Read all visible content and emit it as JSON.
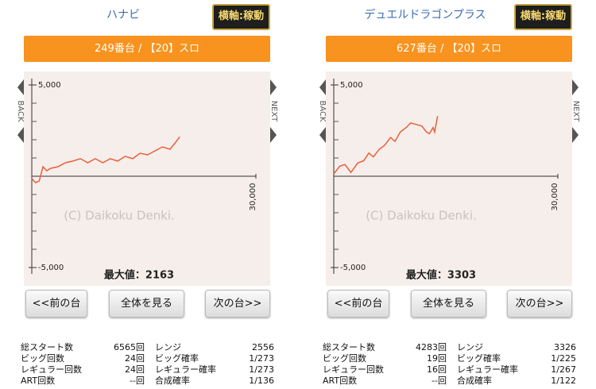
{
  "panels": [
    {
      "title": "ハナビ",
      "axis_button": "横軸:稼動",
      "machine": "249番台 / 【20】スロ",
      "back": "BACK",
      "next": "NEXT",
      "watermark": "(C) Daikoku Denki.",
      "chart": {
        "type": "line",
        "color": "#e8603c",
        "x": [
          0,
          500,
          1000,
          1500,
          2000,
          2500,
          3500,
          4500,
          5500,
          6500,
          7500,
          8500,
          9500,
          10500,
          11500,
          12500,
          13500,
          14500,
          15500,
          16500,
          17500,
          18500,
          19200,
          19800
        ],
        "values": [
          -130,
          -350,
          -260,
          520,
          300,
          430,
          520,
          740,
          830,
          960,
          740,
          960,
          740,
          960,
          830,
          1090,
          960,
          1260,
          1170,
          1390,
          1610,
          1480,
          1830,
          2160
        ],
        "xlim": [
          0,
          30000
        ],
        "ylim": [
          -5000,
          5000
        ],
        "xticks": [
          {
            "value": 30000,
            "label": "30,000"
          }
        ],
        "yticks": [
          {
            "value": 5000,
            "label": "5,000"
          },
          {
            "value": -5000,
            "label": "-5,000"
          }
        ],
        "minor_yticks": [
          -4000,
          -3000,
          -2000,
          -1000,
          1000,
          2000,
          3000,
          4000
        ]
      },
      "max_text": "最大値：2163",
      "buttons": [
        "<<前の台",
        "全体を見る",
        "次の台>>"
      ],
      "stats": [
        [
          "総スタート数",
          "6565回",
          "レンジ",
          "2556"
        ],
        [
          "ビッグ回数",
          "24回",
          "ビッグ確率",
          "1/273"
        ],
        [
          "レギュラー回数",
          "24回",
          "レギュラー確率",
          "1/273"
        ],
        [
          "ART回数",
          "--回",
          "合成確率",
          "1/136"
        ]
      ]
    },
    {
      "title": "デュエルドラゴンプラス",
      "axis_button": "横軸:稼動",
      "machine": "627番台 / 【20】スロ",
      "back": "BACK",
      "next": "NEXT",
      "watermark": "(C) Daikoku Denki.",
      "chart": {
        "type": "line",
        "color": "#e8603c",
        "x": [
          0,
          800,
          1500,
          2300,
          3200,
          4000,
          4700,
          5300,
          6100,
          6800,
          7600,
          8200,
          8900,
          9700,
          10300,
          11000,
          11800,
          12400,
          12800,
          13300,
          13500,
          13900
        ],
        "values": [
          130,
          550,
          640,
          210,
          720,
          850,
          1270,
          1060,
          1480,
          1690,
          2120,
          1910,
          2420,
          2670,
          2920,
          2840,
          2750,
          2420,
          2330,
          2670,
          2420,
          3300
        ],
        "xlim": [
          0,
          30000
        ],
        "ylim": [
          -5000,
          5000
        ],
        "xticks": [
          {
            "value": 30000,
            "label": "30,000"
          }
        ],
        "yticks": [
          {
            "value": 5000,
            "label": "5,000"
          },
          {
            "value": -5000,
            "label": "-5,000"
          }
        ],
        "minor_yticks": [
          -4000,
          -3000,
          -2000,
          -1000,
          1000,
          2000,
          3000,
          4000
        ]
      },
      "max_text": "最大値：3303",
      "buttons": [
        "<<前の台",
        "全体を見る",
        "次の台>>"
      ],
      "stats": [
        [
          "総スタート数",
          "4283回",
          "レンジ",
          "3326"
        ],
        [
          "ビッグ回数",
          "19回",
          "ビッグ確率",
          "1/225"
        ],
        [
          "レギュラー回数",
          "16回",
          "レギュラー確率",
          "1/267"
        ],
        [
          "ART回数",
          "--回",
          "合成確率",
          "1/122"
        ]
      ]
    }
  ]
}
